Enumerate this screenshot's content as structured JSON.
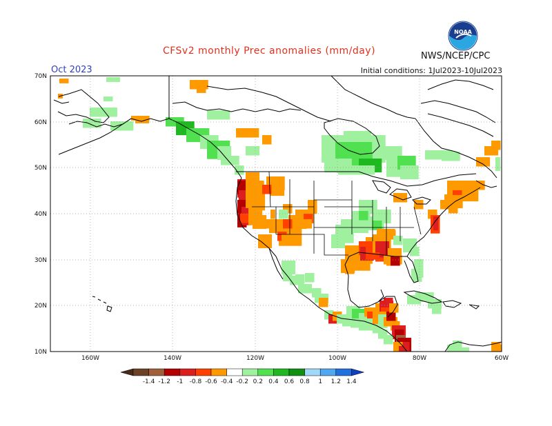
{
  "title": "CFSv2 monthly Prec anomalies (mm/day)",
  "agency": "NWS/NCEP/CPC",
  "month": "Oct 2023",
  "initial_conditions": "Initial conditions: 1Jul2023-10Jul2023",
  "logo_text": "NOAA",
  "map": {
    "lat_labels": [
      "70N",
      "60N",
      "50N",
      "40N",
      "30N",
      "20N",
      "10N"
    ],
    "lon_labels": [
      "160W",
      "140W",
      "120W",
      "100W",
      "80W",
      "60W"
    ]
  },
  "colorbar": {
    "labels": [
      "-1.4",
      "-1.2",
      "-1",
      "-0.8",
      "-0.6",
      "-0.4",
      "-0.2",
      "0.2",
      "0.4",
      "0.6",
      "0.8",
      "1",
      "1.2",
      "1.4"
    ],
    "colors": [
      "#6b4226",
      "#a0603c",
      "#b40000",
      "#dc1e1e",
      "#ff4000",
      "#ff9900",
      "#ffffff",
      "#9ff09f",
      "#50e050",
      "#20b820",
      "#109010",
      "#a0d8f8",
      "#50a8f0",
      "#2070e0"
    ],
    "dry_end": "#4a2a18",
    "wet_end": "#1040c0"
  },
  "colors": {
    "land_outline": "#000000",
    "grid": "#9a9a9a",
    "title": "#e0301e",
    "month": "#2f3fbf"
  }
}
